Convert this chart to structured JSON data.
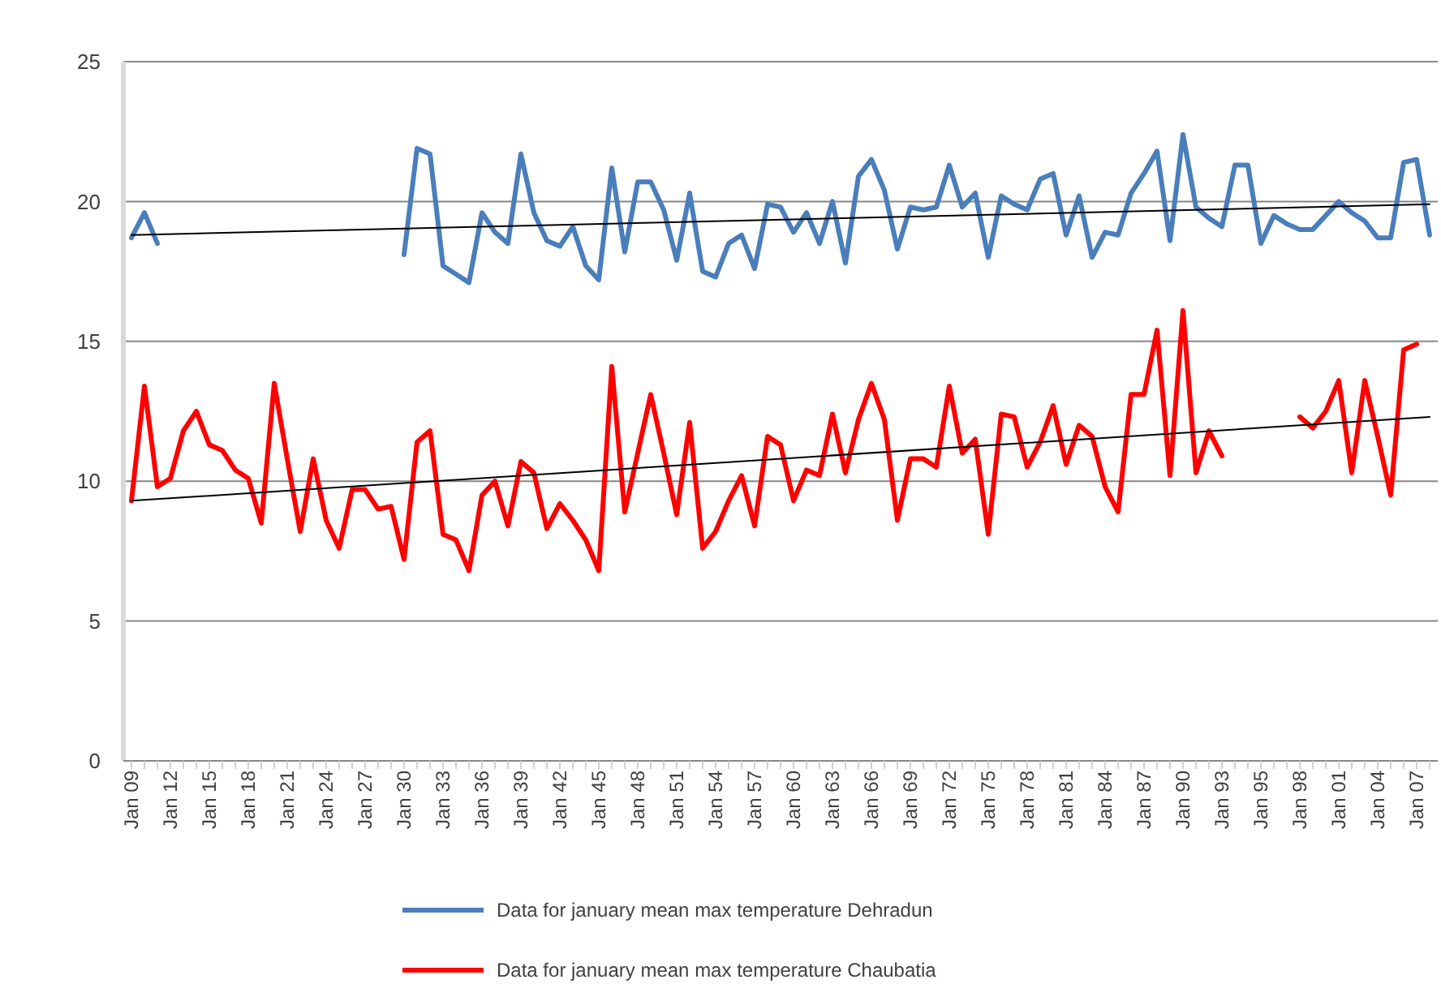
{
  "chart_data": {
    "type": "line",
    "categories": [
      "Jan 09",
      null,
      null,
      "Jan 12",
      null,
      null,
      "Jan 15",
      null,
      null,
      "Jan 18",
      null,
      null,
      "Jan 21",
      null,
      null,
      "Jan 24",
      null,
      null,
      "Jan 27",
      null,
      null,
      "Jan 30",
      null,
      null,
      "Jan 33",
      null,
      null,
      "Jan 36",
      null,
      null,
      "Jan 39",
      null,
      null,
      "Jan 42",
      null,
      null,
      "Jan 45",
      null,
      null,
      "Jan 48",
      null,
      null,
      "Jan 51",
      null,
      null,
      "Jan 54",
      null,
      null,
      "Jan 57",
      null,
      null,
      "Jan 60",
      null,
      null,
      "Jan 63",
      null,
      null,
      "Jan 66",
      null,
      null,
      "Jan 69",
      null,
      null,
      "Jan 72",
      null,
      null,
      "Jan 75",
      null,
      null,
      "Jan 78",
      null,
      null,
      "Jan 81",
      null,
      null,
      "Jan 84",
      null,
      null,
      "Jan 87",
      null,
      null,
      "Jan 90",
      null,
      null,
      "Jan 93",
      null,
      null,
      "Jan 95",
      null,
      null,
      "Jan 98",
      null,
      null,
      "Jan 01",
      null,
      null,
      "Jan 04",
      null,
      null,
      "Jan 07",
      null
    ],
    "series": [
      {
        "name": "Data for january mean max temperature Dehradun",
        "color": "#4a7ebb",
        "values": [
          18.7,
          19.6,
          18.5,
          null,
          null,
          null,
          null,
          null,
          null,
          null,
          null,
          null,
          null,
          null,
          null,
          null,
          null,
          null,
          null,
          null,
          null,
          18.1,
          21.9,
          21.7,
          17.7,
          17.4,
          17.1,
          19.6,
          18.9,
          18.5,
          21.7,
          19.6,
          18.6,
          18.4,
          19.1,
          17.7,
          17.2,
          21.2,
          18.2,
          20.7,
          20.7,
          19.7,
          17.9,
          20.3,
          17.5,
          17.3,
          18.5,
          18.8,
          17.6,
          19.9,
          19.8,
          18.9,
          19.6,
          18.5,
          20.0,
          17.8,
          20.9,
          21.5,
          20.4,
          18.3,
          19.8,
          19.7,
          19.8,
          21.3,
          19.8,
          20.3,
          18.0,
          20.2,
          19.9,
          19.7,
          20.8,
          21.0,
          18.8,
          20.2,
          18.0,
          18.9,
          18.8,
          20.3,
          21.0,
          21.8,
          18.6,
          22.4,
          19.8,
          19.4,
          19.1,
          21.3,
          21.3,
          18.5,
          19.5,
          19.2,
          19.0,
          19.0,
          19.5,
          20.0,
          19.6,
          19.3,
          18.7,
          18.7,
          21.4,
          21.5,
          18.8
        ]
      },
      {
        "name": "Data for january mean max temperature Chaubatia",
        "color": "#ff0000",
        "values": [
          9.3,
          13.4,
          9.8,
          10.1,
          11.8,
          12.5,
          11.3,
          11.1,
          10.4,
          10.1,
          8.5,
          13.5,
          10.8,
          8.2,
          10.8,
          8.6,
          7.6,
          9.7,
          9.7,
          9.0,
          9.1,
          7.2,
          11.4,
          11.8,
          8.1,
          7.9,
          6.8,
          9.5,
          10.0,
          8.4,
          10.7,
          10.3,
          8.3,
          9.2,
          8.6,
          7.9,
          6.8,
          14.1,
          8.9,
          11.0,
          13.1,
          11.0,
          8.8,
          12.1,
          7.6,
          8.2,
          9.3,
          10.2,
          8.4,
          11.6,
          11.3,
          9.3,
          10.4,
          10.2,
          12.4,
          10.3,
          12.2,
          13.5,
          12.2,
          8.6,
          10.8,
          10.8,
          10.5,
          13.4,
          11.0,
          11.5,
          8.1,
          12.4,
          12.3,
          10.5,
          11.4,
          12.7,
          10.6,
          12.0,
          11.6,
          9.8,
          8.9,
          13.1,
          13.1,
          15.4,
          10.2,
          16.1,
          10.3,
          11.8,
          10.9,
          null,
          null,
          null,
          null,
          null,
          12.3,
          11.9,
          12.5,
          13.6,
          10.3,
          13.6,
          11.6,
          9.5,
          14.7,
          14.9,
          null
        ]
      },
      {
        "type": "line",
        "color": "#000000",
        "values": [
          18.8,
          null,
          null,
          null,
          null,
          null,
          null,
          null,
          null,
          null,
          null,
          null,
          null,
          null,
          null,
          null,
          null,
          null,
          null,
          null,
          null,
          null,
          null,
          null,
          null,
          null,
          null,
          null,
          null,
          null,
          null,
          null,
          null,
          null,
          null,
          null,
          null,
          null,
          null,
          null,
          null,
          null,
          null,
          null,
          null,
          null,
          null,
          null,
          null,
          null,
          null,
          null,
          null,
          null,
          null,
          null,
          null,
          null,
          null,
          null,
          null,
          null,
          null,
          null,
          null,
          null,
          null,
          null,
          null,
          null,
          null,
          null,
          null,
          null,
          null,
          null,
          null,
          null,
          null,
          null,
          null,
          null,
          null,
          null,
          null,
          null,
          null,
          null,
          null,
          null,
          null,
          null,
          null,
          null,
          null,
          null,
          null,
          null,
          null,
          null,
          19.9
        ]
      },
      {
        "type": "line",
        "color": "#000000",
        "values": [
          9.3,
          null,
          null,
          null,
          null,
          null,
          null,
          null,
          null,
          null,
          null,
          null,
          null,
          null,
          null,
          null,
          null,
          null,
          null,
          null,
          null,
          null,
          null,
          null,
          null,
          null,
          null,
          null,
          null,
          null,
          null,
          null,
          null,
          null,
          null,
          null,
          null,
          null,
          null,
          null,
          null,
          null,
          null,
          null,
          null,
          null,
          null,
          null,
          null,
          null,
          null,
          null,
          null,
          null,
          null,
          null,
          null,
          null,
          null,
          null,
          null,
          null,
          null,
          null,
          null,
          null,
          null,
          null,
          null,
          null,
          null,
          null,
          null,
          null,
          null,
          null,
          null,
          null,
          null,
          null,
          null,
          null,
          null,
          null,
          null,
          null,
          null,
          null,
          null,
          null,
          null,
          null,
          null,
          null,
          null,
          null,
          null,
          null,
          null,
          null,
          12.3
        ]
      }
    ],
    "ylim": [
      0,
      25
    ],
    "yticks": [
      0,
      5,
      10,
      15,
      20,
      25
    ],
    "grid": "y",
    "legend": "bottom"
  }
}
